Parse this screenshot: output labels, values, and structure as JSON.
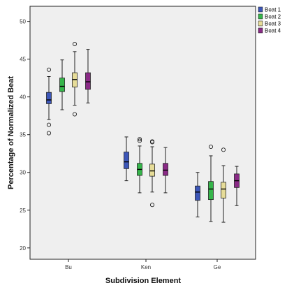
{
  "chart_data": {
    "type": "boxplot",
    "title": "",
    "xlabel": "Subdivision Element",
    "ylabel": "Percentage of Normalized Beat",
    "categories": [
      "Bu",
      "Ken",
      "Ge"
    ],
    "ylim": [
      18.5,
      52
    ],
    "yticks": [
      20,
      25,
      30,
      35,
      40,
      45,
      50
    ],
    "grid": false,
    "legend_position": "top-right",
    "series": [
      {
        "name": "Beat 1",
        "color": "#3c56b8",
        "boxes": [
          {
            "whisker_low": 37.0,
            "q1": 39.1,
            "median": 39.6,
            "q3": 40.6,
            "whisker_high": 42.7,
            "outliers": [
              35.2,
              36.3,
              43.6
            ]
          },
          {
            "whisker_low": 28.9,
            "q1": 30.5,
            "median": 31.4,
            "q3": 32.7,
            "whisker_high": 34.7,
            "outliers": []
          },
          {
            "whisker_low": 24.1,
            "q1": 26.3,
            "median": 27.4,
            "q3": 28.2,
            "whisker_high": 30.0,
            "outliers": []
          }
        ]
      },
      {
        "name": "Beat 2",
        "color": "#35b54a",
        "boxes": [
          {
            "whisker_low": 38.3,
            "q1": 40.7,
            "median": 41.4,
            "q3": 42.5,
            "whisker_high": 44.9,
            "outliers": []
          },
          {
            "whisker_low": 27.3,
            "q1": 29.6,
            "median": 30.4,
            "q3": 31.2,
            "whisker_high": 33.5,
            "outliers": [
              34.2,
              34.4
            ]
          },
          {
            "whisker_low": 23.5,
            "q1": 26.4,
            "median": 27.8,
            "q3": 28.8,
            "whisker_high": 32.2,
            "outliers": [
              33.4
            ]
          }
        ]
      },
      {
        "name": "Beat 3",
        "color": "#e6dc98",
        "boxes": [
          {
            "whisker_low": 38.9,
            "q1": 41.3,
            "median": 42.3,
            "q3": 43.2,
            "whisker_high": 46.0,
            "outliers": [
              37.7,
              47.0
            ]
          },
          {
            "whisker_low": 27.4,
            "q1": 29.5,
            "median": 30.2,
            "q3": 31.1,
            "whisker_high": 33.4,
            "outliers": [
              25.7,
              34.0,
              34.1
            ]
          },
          {
            "whisker_low": 23.4,
            "q1": 26.6,
            "median": 27.8,
            "q3": 28.7,
            "whisker_high": 30.9,
            "outliers": [
              33.0
            ]
          }
        ]
      },
      {
        "name": "Beat 4",
        "color": "#8a2a86",
        "boxes": [
          {
            "whisker_low": 39.2,
            "q1": 41.0,
            "median": 42.0,
            "q3": 43.2,
            "whisker_high": 46.3,
            "outliers": []
          },
          {
            "whisker_low": 27.3,
            "q1": 29.6,
            "median": 30.3,
            "q3": 31.2,
            "whisker_high": 33.3,
            "outliers": []
          },
          {
            "whisker_low": 25.6,
            "q1": 28.0,
            "median": 28.9,
            "q3": 29.8,
            "whisker_high": 30.8,
            "outliers": []
          }
        ]
      }
    ]
  }
}
